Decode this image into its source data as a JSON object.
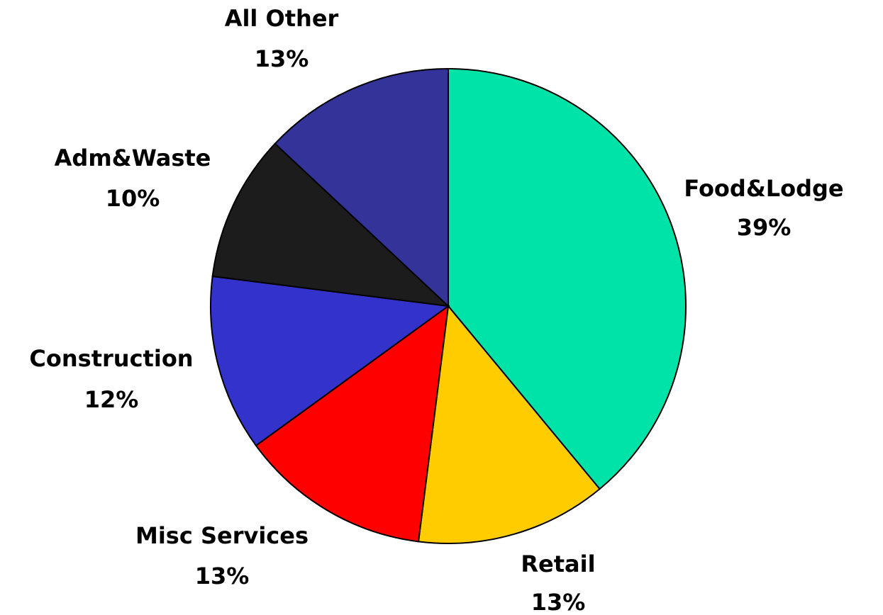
{
  "chart_data": {
    "type": "pie",
    "categories": [
      "Food&Lodge",
      "Retail",
      "Misc Services",
      "Construction",
      "Adm&Waste",
      "All Other"
    ],
    "values": [
      39,
      13,
      13,
      12,
      10,
      13
    ],
    "value_labels": [
      "39%",
      "13%",
      "13%",
      "12%",
      "10%",
      "13%"
    ],
    "colors": [
      "#00e3a8",
      "#ffcc00",
      "#ff0000",
      "#3333cc",
      "#1c1c1c",
      "#333399"
    ]
  }
}
